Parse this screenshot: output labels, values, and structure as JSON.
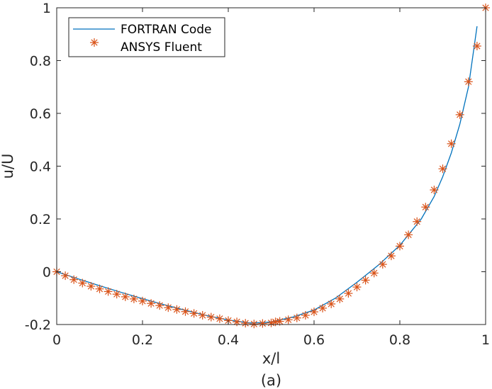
{
  "chart_data": {
    "type": "line",
    "title": "",
    "caption": "(a)",
    "xlabel": "x/l",
    "ylabel": "u/U",
    "xlim": [
      0,
      1
    ],
    "ylim": [
      -0.2,
      1
    ],
    "xticks": [
      0,
      0.2,
      0.4,
      0.6,
      0.8,
      1
    ],
    "xtick_labels": [
      "0",
      "0.2",
      "0.4",
      "0.6",
      "0.8",
      "1"
    ],
    "yticks": [
      -0.2,
      0,
      0.2,
      0.4,
      0.6,
      0.8,
      1
    ],
    "ytick_labels": [
      "-0.2",
      "0",
      "0.2",
      "0.4",
      "0.6",
      "0.8",
      "1"
    ],
    "grid": false,
    "legend_position": "top-left",
    "series": [
      {
        "name": "FORTRAN Code",
        "style": "line",
        "color": "#0072BD",
        "x": [
          0,
          0.05,
          0.1,
          0.15,
          0.2,
          0.25,
          0.3,
          0.35,
          0.4,
          0.45,
          0.48,
          0.5,
          0.55,
          0.6,
          0.65,
          0.7,
          0.75,
          0.8,
          0.85,
          0.88,
          0.9,
          0.92,
          0.94,
          0.96,
          0.98
        ],
        "y": [
          0,
          -0.027,
          -0.053,
          -0.078,
          -0.102,
          -0.125,
          -0.146,
          -0.166,
          -0.183,
          -0.194,
          -0.193,
          -0.19,
          -0.172,
          -0.145,
          -0.1,
          -0.04,
          0.025,
          0.1,
          0.2,
          0.285,
          0.36,
          0.45,
          0.56,
          0.7,
          0.93
        ]
      },
      {
        "name": "ANSYS Fluent",
        "style": "marker",
        "marker": "asterisk",
        "color": "#D95319",
        "x": [
          0,
          0.02,
          0.04,
          0.06,
          0.08,
          0.1,
          0.12,
          0.14,
          0.16,
          0.18,
          0.2,
          0.22,
          0.24,
          0.26,
          0.28,
          0.3,
          0.32,
          0.34,
          0.36,
          0.38,
          0.4,
          0.42,
          0.44,
          0.46,
          0.48,
          0.5,
          0.51,
          0.52,
          0.54,
          0.56,
          0.58,
          0.6,
          0.62,
          0.64,
          0.66,
          0.68,
          0.7,
          0.72,
          0.74,
          0.76,
          0.78,
          0.8,
          0.82,
          0.84,
          0.86,
          0.88,
          0.9,
          0.92,
          0.94,
          0.96,
          0.98,
          1.0
        ],
        "y": [
          0,
          -0.015,
          -0.03,
          -0.043,
          -0.055,
          -0.065,
          -0.075,
          -0.085,
          -0.095,
          -0.103,
          -0.111,
          -0.12,
          -0.128,
          -0.136,
          -0.143,
          -0.151,
          -0.158,
          -0.165,
          -0.172,
          -0.178,
          -0.185,
          -0.19,
          -0.195,
          -0.198,
          -0.196,
          -0.194,
          -0.19,
          -0.188,
          -0.182,
          -0.175,
          -0.165,
          -0.152,
          -0.138,
          -0.122,
          -0.103,
          -0.082,
          -0.058,
          -0.032,
          -0.005,
          0.028,
          0.06,
          0.097,
          0.14,
          0.19,
          0.245,
          0.31,
          0.39,
          0.485,
          0.595,
          0.72,
          0.855,
          1.0
        ]
      }
    ]
  }
}
